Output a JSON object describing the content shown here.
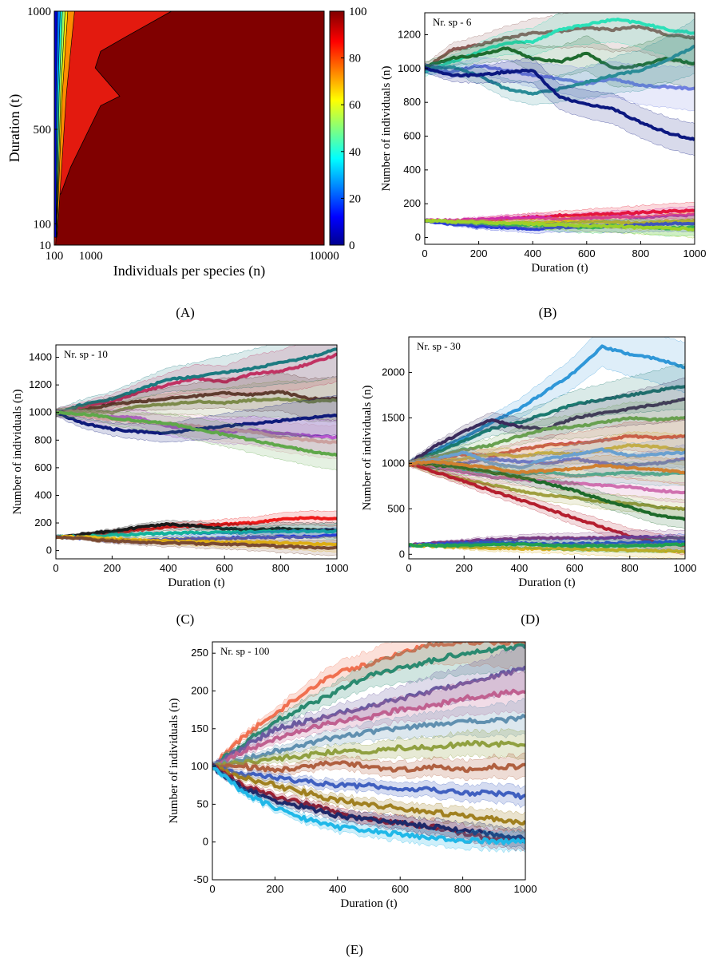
{
  "captions": {
    "a": "(A)",
    "b": "(B)",
    "c": "(C)",
    "d": "(D)",
    "e": "(E)"
  },
  "chart_data": [
    {
      "id": "A",
      "type": "heatmap",
      "xlabel": "Individuals per species (n)",
      "ylabel": "Duration (t)",
      "xticks": [
        "100",
        "1000",
        "10000"
      ],
      "yticks": [
        "10",
        "100",
        "500",
        "1000"
      ],
      "xlim": [
        100,
        10000
      ],
      "ylim": [
        10,
        1000
      ],
      "colorbar": {
        "range": [
          0,
          100
        ],
        "ticks": [
          "0",
          "20",
          "40",
          "60",
          "80",
          "100"
        ],
        "colormap": "jet"
      },
      "boundary_100": [
        [
          150,
          10
        ],
        [
          190,
          100
        ],
        [
          250,
          200
        ],
        [
          280,
          220
        ],
        [
          350,
          230
        ],
        [
          700,
          340
        ],
        [
          1800,
          600
        ],
        [
          2500,
          640
        ],
        [
          1600,
          760
        ],
        [
          1800,
          830
        ],
        [
          2700,
          890
        ],
        [
          4400,
          1000
        ]
      ],
      "boundary_90": [
        [
          115,
          50
        ],
        [
          190,
          600
        ],
        [
          230,
          860
        ],
        [
          380,
          1000
        ]
      ]
    },
    {
      "id": "B",
      "type": "line",
      "annotation": "Nr. sp - 6",
      "xlabel": "Duration (t)",
      "ylabel": "Number of individuals (n)",
      "xlim": [
        0,
        1000
      ],
      "ylim": [
        -40,
        1330
      ],
      "xticks": [
        "0",
        "200",
        "400",
        "600",
        "800",
        "1000"
      ],
      "yticks": [
        "0",
        "200",
        "400",
        "600",
        "800",
        "1000",
        "1200"
      ],
      "x": [
        0,
        100,
        200,
        300,
        400,
        500,
        600,
        700,
        800,
        900,
        1000
      ],
      "series": [
        {
          "color": "#8c5a55",
          "values": [
            1000,
            1110,
            1140,
            1180,
            1210,
            1220,
            1240,
            1230,
            1250,
            1200,
            1180
          ]
        },
        {
          "color": "#2be0b8",
          "values": [
            980,
            1040,
            1100,
            1150,
            1160,
            1230,
            1260,
            1290,
            1270,
            1230,
            1210
          ]
        },
        {
          "color": "#1e6b2e",
          "values": [
            1010,
            1060,
            1080,
            1120,
            1060,
            1040,
            1090,
            1000,
            1020,
            1060,
            1030
          ]
        },
        {
          "color": "#6f7fe0",
          "values": [
            1000,
            980,
            1020,
            990,
            960,
            940,
            910,
            940,
            900,
            890,
            880
          ]
        },
        {
          "color": "#2a8c97",
          "values": [
            1000,
            1010,
            960,
            880,
            850,
            880,
            920,
            960,
            990,
            1050,
            1130
          ]
        },
        {
          "color": "#0c1880",
          "values": [
            1000,
            960,
            960,
            980,
            990,
            830,
            790,
            760,
            680,
            620,
            580
          ]
        },
        {
          "color": "#e8112a",
          "values": [
            100,
            95,
            100,
            110,
            120,
            130,
            135,
            140,
            150,
            155,
            160
          ]
        },
        {
          "color": "#d12aa8",
          "values": [
            100,
            100,
            105,
            115,
            120,
            110,
            115,
            125,
            120,
            130,
            135
          ]
        },
        {
          "color": "#f2b90c",
          "values": [
            100,
            90,
            85,
            80,
            85,
            90,
            95,
            90,
            85,
            95,
            100
          ]
        },
        {
          "color": "#22c24a",
          "values": [
            100,
            85,
            80,
            70,
            75,
            65,
            60,
            70,
            65,
            55,
            60
          ]
        },
        {
          "color": "#2e3fd6",
          "values": [
            100,
            80,
            65,
            60,
            50,
            60,
            70,
            65,
            75,
            80,
            85
          ]
        },
        {
          "color": "#9bd12a",
          "values": [
            100,
            95,
            90,
            85,
            80,
            75,
            70,
            65,
            60,
            55,
            50
          ]
        }
      ]
    },
    {
      "id": "C",
      "type": "line",
      "annotation": "Nr. sp - 10",
      "xlabel": "Duration (t)",
      "ylabel": "Number of individuals (n)",
      "xlim": [
        0,
        1000
      ],
      "ylim": [
        -60,
        1490
      ],
      "xticks": [
        "0",
        "200",
        "400",
        "600",
        "800",
        "1000"
      ],
      "yticks": [
        "0",
        "200",
        "400",
        "600",
        "800",
        "1000",
        "1200",
        "1400"
      ],
      "x": [
        0,
        100,
        200,
        300,
        400,
        500,
        600,
        700,
        800,
        900,
        1000
      ],
      "series": [
        {
          "color": "#e0245e",
          "values": [
            1000,
            1040,
            1080,
            1150,
            1200,
            1250,
            1220,
            1280,
            1300,
            1350,
            1420
          ]
        },
        {
          "color": "#1c7a80",
          "values": [
            1000,
            1060,
            1100,
            1170,
            1240,
            1260,
            1290,
            1320,
            1360,
            1400,
            1460
          ]
        },
        {
          "color": "#5a2e2a",
          "values": [
            1000,
            1020,
            1060,
            1080,
            1100,
            1120,
            1140,
            1130,
            1150,
            1100,
            1100
          ]
        },
        {
          "color": "#7c8a4a",
          "values": [
            1000,
            1010,
            1000,
            1050,
            1060,
            1080,
            1070,
            1090,
            1100,
            1080,
            1090
          ]
        },
        {
          "color": "#b24ad6",
          "values": [
            1000,
            980,
            970,
            960,
            900,
            880,
            860,
            870,
            850,
            830,
            820
          ]
        },
        {
          "color": "#e0a0b0",
          "values": [
            1000,
            970,
            950,
            930,
            920,
            900,
            880,
            860,
            820,
            800,
            780
          ]
        },
        {
          "color": "#0e1a7a",
          "values": [
            1000,
            920,
            880,
            860,
            850,
            880,
            900,
            920,
            940,
            960,
            980
          ]
        },
        {
          "color": "#5fa84a",
          "values": [
            1000,
            990,
            960,
            940,
            920,
            880,
            840,
            800,
            760,
            720,
            690
          ]
        },
        {
          "color": "#ee1a1a",
          "values": [
            100,
            110,
            130,
            150,
            170,
            180,
            190,
            200,
            230,
            235,
            235
          ]
        },
        {
          "color": "#1a1a1a",
          "values": [
            100,
            120,
            140,
            170,
            190,
            180,
            160,
            150,
            160,
            150,
            150
          ]
        },
        {
          "color": "#13b39b",
          "values": [
            100,
            100,
            110,
            120,
            125,
            130,
            130,
            135,
            140,
            140,
            140
          ]
        },
        {
          "color": "#2d41d8",
          "values": [
            100,
            90,
            75,
            70,
            80,
            85,
            90,
            95,
            100,
            100,
            110
          ]
        },
        {
          "color": "#f0c010",
          "values": [
            100,
            95,
            85,
            75,
            70,
            65,
            60,
            60,
            55,
            50,
            45
          ]
        },
        {
          "color": "#7a4a32",
          "values": [
            100,
            85,
            70,
            60,
            55,
            50,
            45,
            40,
            30,
            25,
            20
          ]
        }
      ]
    },
    {
      "id": "D",
      "type": "line",
      "annotation": "Nr. sp - 30",
      "xlabel": "Duration (t)",
      "ylabel": "Number of individuals (n)",
      "xlim": [
        0,
        1000
      ],
      "ylim": [
        -50,
        2390
      ],
      "xticks": [
        "0",
        "200",
        "400",
        "600",
        "800",
        "1000"
      ],
      "yticks": [
        "0",
        "500",
        "1000",
        "1500",
        "2000"
      ],
      "x": [
        0,
        100,
        200,
        300,
        400,
        500,
        600,
        700,
        800,
        900,
        1000
      ],
      "series": [
        {
          "color": "#2f97d8",
          "values": [
            1000,
            1150,
            1280,
            1450,
            1600,
            1800,
            2000,
            2280,
            2200,
            2150,
            2050
          ]
        },
        {
          "color": "#1b7a70",
          "values": [
            1000,
            1120,
            1250,
            1380,
            1450,
            1550,
            1650,
            1700,
            1750,
            1800,
            1850
          ]
        },
        {
          "color": "#3a2a5a",
          "values": [
            1000,
            1200,
            1350,
            1480,
            1400,
            1380,
            1500,
            1550,
            1600,
            1650,
            1700
          ]
        },
        {
          "color": "#68a050",
          "values": [
            1000,
            1080,
            1150,
            1200,
            1300,
            1380,
            1400,
            1450,
            1500,
            1480,
            1500
          ]
        },
        {
          "color": "#c8504a",
          "values": [
            1000,
            1050,
            1100,
            1080,
            1150,
            1200,
            1220,
            1250,
            1300,
            1280,
            1300
          ]
        },
        {
          "color": "#d4b030",
          "values": [
            1000,
            1020,
            1050,
            1100,
            1080,
            1120,
            1100,
            1150,
            1200,
            1180,
            1150
          ]
        },
        {
          "color": "#7070c0",
          "values": [
            1000,
            980,
            1000,
            1050,
            1020,
            1000,
            1050,
            1000,
            980,
            1000,
            1050
          ]
        },
        {
          "color": "#40b0a0",
          "values": [
            1000,
            950,
            920,
            900,
            880,
            900,
            860,
            880,
            900,
            880,
            900
          ]
        },
        {
          "color": "#d070b0",
          "values": [
            1000,
            960,
            900,
            850,
            820,
            800,
            780,
            760,
            740,
            700,
            680
          ]
        },
        {
          "color": "#a0a040",
          "values": [
            1000,
            900,
            820,
            760,
            700,
            650,
            620,
            580,
            560,
            520,
            500
          ]
        },
        {
          "color": "#1d6a2a",
          "values": [
            1000,
            980,
            950,
            900,
            850,
            780,
            700,
            600,
            520,
            430,
            380
          ]
        },
        {
          "color": "#b51e2e",
          "values": [
            1000,
            900,
            800,
            700,
            600,
            500,
            400,
            300,
            200,
            130,
            100
          ]
        },
        {
          "color": "#6aa0d0",
          "values": [
            1000,
            1050,
            1120,
            1000,
            950,
            1050,
            1100,
            1150,
            1080,
            1100,
            1120
          ]
        },
        {
          "color": "#d08030",
          "values": [
            1000,
            1020,
            980,
            950,
            900,
            920,
            940,
            980,
            950,
            930,
            900
          ]
        },
        {
          "color": "#7a3a80",
          "values": [
            100,
            120,
            140,
            160,
            170,
            180,
            175,
            180,
            190,
            185,
            180
          ]
        },
        {
          "color": "#2a4ad8",
          "values": [
            100,
            110,
            120,
            130,
            120,
            110,
            115,
            120,
            125,
            130,
            140
          ]
        },
        {
          "color": "#d8b020",
          "values": [
            100,
            90,
            80,
            70,
            65,
            60,
            55,
            50,
            45,
            40,
            30
          ]
        },
        {
          "color": "#20a050",
          "values": [
            100,
            95,
            100,
            105,
            110,
            100,
            95,
            90,
            95,
            100,
            110
          ]
        }
      ]
    },
    {
      "id": "E",
      "type": "line",
      "annotation": "Nr. sp - 100",
      "xlabel": "Duration (t)",
      "ylabel": "Number of individuals (n)",
      "xlim": [
        0,
        1000
      ],
      "ylim": [
        -50,
        265
      ],
      "xticks": [
        "0",
        "200",
        "400",
        "600",
        "800",
        "1000"
      ],
      "yticks": [
        "-50",
        "0",
        "50",
        "100",
        "150",
        "200",
        "250"
      ],
      "x": [
        0,
        100,
        200,
        300,
        400,
        500,
        600,
        700,
        800,
        900,
        1000
      ],
      "series": [
        {
          "color": "#f07050",
          "values": [
            100,
            140,
            170,
            200,
            225,
            235,
            250,
            262,
            265,
            265,
            265
          ]
        },
        {
          "color": "#2a8a70",
          "values": [
            100,
            130,
            160,
            180,
            200,
            220,
            230,
            240,
            250,
            255,
            260
          ]
        },
        {
          "color": "#6a5aa0",
          "values": [
            100,
            125,
            150,
            160,
            170,
            180,
            190,
            200,
            210,
            220,
            230
          ]
        },
        {
          "color": "#c06090",
          "values": [
            100,
            120,
            135,
            150,
            160,
            165,
            175,
            180,
            190,
            195,
            200
          ]
        },
        {
          "color": "#6090b0",
          "values": [
            100,
            110,
            120,
            130,
            140,
            145,
            150,
            155,
            160,
            160,
            165
          ]
        },
        {
          "color": "#90a040",
          "values": [
            100,
            105,
            110,
            115,
            120,
            120,
            125,
            125,
            130,
            130,
            130
          ]
        },
        {
          "color": "#b06040",
          "values": [
            100,
            100,
            95,
            100,
            105,
            100,
            95,
            100,
            95,
            100,
            100
          ]
        },
        {
          "color": "#4060c0",
          "values": [
            100,
            90,
            85,
            80,
            75,
            75,
            70,
            70,
            65,
            65,
            60
          ]
        },
        {
          "color": "#a08020",
          "values": [
            100,
            85,
            75,
            65,
            55,
            50,
            45,
            40,
            35,
            30,
            25
          ]
        },
        {
          "color": "#a02030",
          "values": [
            100,
            75,
            60,
            50,
            40,
            30,
            25,
            20,
            12,
            5,
            2
          ]
        },
        {
          "color": "#1e2a6a",
          "values": [
            100,
            70,
            55,
            45,
            35,
            30,
            25,
            20,
            15,
            10,
            5
          ]
        },
        {
          "color": "#20b8e8",
          "values": [
            100,
            65,
            45,
            30,
            20,
            15,
            10,
            5,
            3,
            1,
            0
          ]
        }
      ]
    }
  ]
}
